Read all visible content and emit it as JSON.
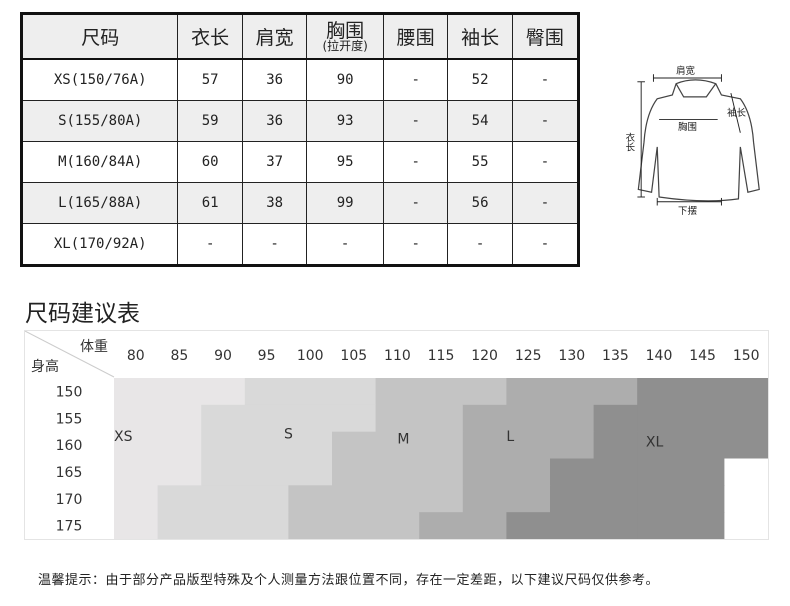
{
  "size_table": {
    "headers": [
      "尺码",
      "衣长",
      "肩宽",
      "胸围",
      "腰围",
      "袖长",
      "臀围"
    ],
    "chest_note": "(拉开度)",
    "rows": [
      [
        "XS(150/76A)",
        "57",
        "36",
        "90",
        "-",
        "52",
        "-"
      ],
      [
        "S(155/80A)",
        "59",
        "36",
        "93",
        "-",
        "54",
        "-"
      ],
      [
        "M(160/84A)",
        "60",
        "37",
        "95",
        "-",
        "55",
        "-"
      ],
      [
        "L(165/88A)",
        "61",
        "38",
        "99",
        "-",
        "56",
        "-"
      ],
      [
        "XL(170/92A)",
        "-",
        "-",
        "-",
        "-",
        "-",
        "-"
      ]
    ]
  },
  "diagram": {
    "shoulder": "肩宽",
    "sleeve": "袖长",
    "chest": "胸围",
    "length": "衣长",
    "hem": "下摆"
  },
  "recommend_title": "尺码建议表",
  "chart_data": {
    "type": "heatmap",
    "x_label": "体重",
    "y_label": "身高",
    "weights": [
      "80",
      "85",
      "90",
      "95",
      "100",
      "105",
      "110",
      "115",
      "120",
      "125",
      "130",
      "135",
      "140",
      "145",
      "150"
    ],
    "heights": [
      "150",
      "155",
      "160",
      "165",
      "170",
      "175"
    ],
    "cells": [
      [
        "XS",
        "XS",
        "XS",
        "S",
        "S",
        "S",
        "M",
        "M",
        "M",
        "L",
        "L",
        "L",
        "XL",
        "XL",
        "XL"
      ],
      [
        "XS",
        "XS",
        "S",
        "S",
        "S",
        "S",
        "M",
        "M",
        "L",
        "L",
        "L",
        "XL",
        "XL",
        "XL",
        "XL"
      ],
      [
        "XS",
        "XS",
        "S",
        "S",
        "S",
        "M",
        "M",
        "M",
        "L",
        "L",
        "L",
        "XL",
        "XL",
        "XL",
        "XL"
      ],
      [
        "XS",
        "XS",
        "S",
        "S",
        "S",
        "M",
        "M",
        "M",
        "L",
        "L",
        "XL",
        "XL",
        "XL",
        "XL",
        ""
      ],
      [
        "XS",
        "S",
        "S",
        "S",
        "M",
        "M",
        "M",
        "M",
        "L",
        "L",
        "XL",
        "XL",
        "XL",
        "XL",
        ""
      ],
      [
        "XS",
        "S",
        "S",
        "S",
        "M",
        "M",
        "M",
        "L",
        "L",
        "XL",
        "XL",
        "XL",
        "XL",
        "XL",
        ""
      ]
    ],
    "size_labels": [
      "XS",
      "S",
      "M",
      "L",
      "XL"
    ],
    "colors": {
      "XS": "#e8e6e7",
      "S": "#d9d9d9",
      "M": "#c4c4c4",
      "L": "#adadad",
      "XL": "#8f8f8f",
      "": "#ffffff"
    }
  },
  "footer": "温馨提示：由于部分产品版型特殊及个人测量方法跟位置不同，存在一定差距，以下建议尺码仅供参考。"
}
